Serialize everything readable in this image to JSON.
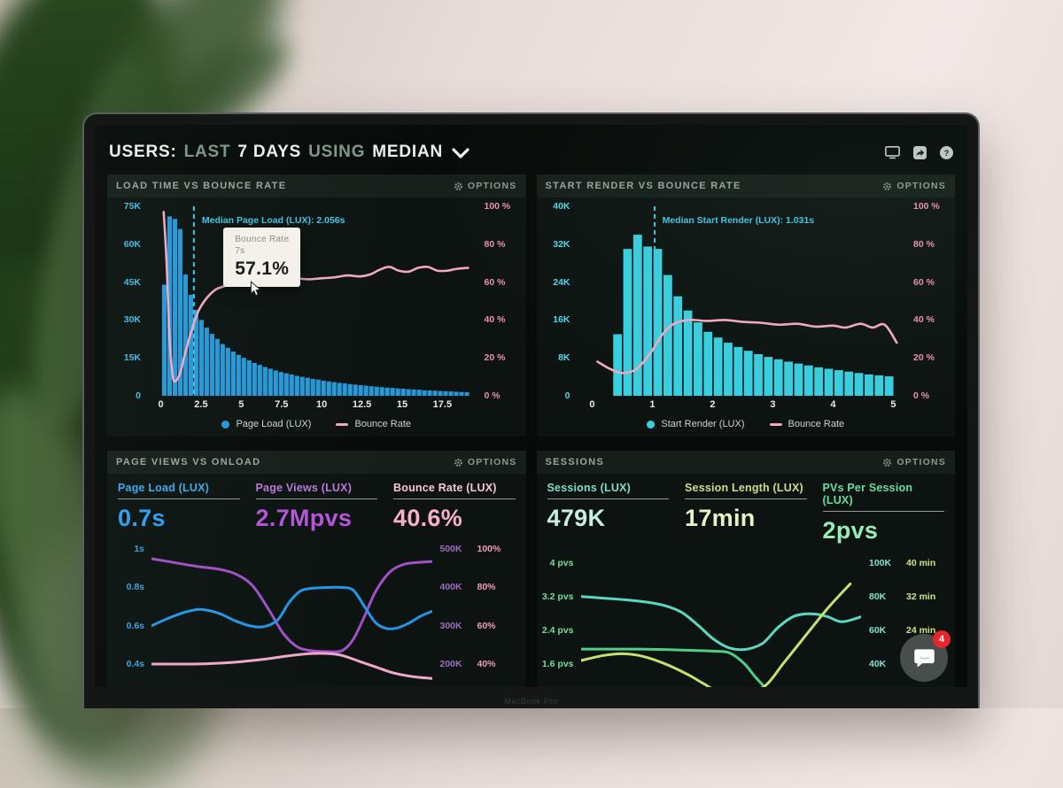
{
  "header": {
    "segments": [
      {
        "text": "USERS:",
        "style": "strong"
      },
      {
        "text": "LAST",
        "style": "muted"
      },
      {
        "text": "7 DAYS",
        "style": "strong"
      },
      {
        "text": "USING",
        "style": "muted"
      },
      {
        "text": "MEDIAN",
        "style": "strong"
      }
    ],
    "icons": [
      "display-icon",
      "share-icon",
      "help-icon"
    ]
  },
  "options_label": "OPTIONS",
  "bezel_label": "MacBook Pro",
  "chat": {
    "unread_count": "4",
    "badge_color": "#e8252d"
  },
  "chart_data": [
    {
      "id": "load-time-vs-bounce-rate",
      "title": "LOAD TIME VS BOUNCE RATE",
      "type": "bar",
      "xlim": [
        -0.8,
        19.6
      ],
      "xticks": [
        "0",
        "2.5",
        "5",
        "7.5",
        "10",
        "12.5",
        "15",
        "17.5"
      ],
      "xtick_values": [
        0,
        2.5,
        5,
        7.5,
        10,
        12.5,
        15,
        17.5
      ],
      "ylim_left": [
        0,
        75
      ],
      "yticks_left": [
        "75K",
        "60K",
        "45K",
        "30K",
        "15K",
        "0"
      ],
      "yticks_left_color": "#3fbce8",
      "ylim_right": [
        0,
        100
      ],
      "yticks_right": [
        "100 %",
        "80 %",
        "60 %",
        "40 %",
        "20 %",
        "0 %"
      ],
      "yticks_right_color": "#ef8fb2",
      "bars": {
        "name": "Page Load (LUX)",
        "color": "#2698d8",
        "bin_start": 0.05,
        "bin_width": 0.33,
        "values_k": [
          44,
          71,
          70,
          66,
          48,
          40,
          34,
          30,
          27,
          24.5,
          22.5,
          20.5,
          19,
          17.5,
          16.2,
          15,
          14,
          13,
          12.2,
          11.4,
          10.7,
          10,
          9.4,
          8.9,
          8.4,
          7.9,
          7.5,
          7.1,
          6.7,
          6.4,
          6,
          5.7,
          5.4,
          5.1,
          4.9,
          4.6,
          4.4,
          4.2,
          4,
          3.8,
          3.6,
          3.4,
          3.2,
          3.1,
          2.9,
          2.8,
          2.6,
          2.5,
          2.4,
          2.2,
          2.1,
          2,
          1.9,
          1.8,
          1.7,
          1.6,
          1.5,
          1.4
        ]
      },
      "line": {
        "name": "Bounce Rate",
        "color": "#f3a8c3",
        "points": [
          [
            0.18,
            97
          ],
          [
            0.35,
            72
          ],
          [
            0.55,
            30
          ],
          [
            0.75,
            10
          ],
          [
            0.95,
            8
          ],
          [
            1.2,
            12
          ],
          [
            1.5,
            22
          ],
          [
            1.9,
            34
          ],
          [
            2.3,
            44
          ],
          [
            2.8,
            51
          ],
          [
            3.4,
            56
          ],
          [
            4,
            58
          ],
          [
            4.6,
            60
          ],
          [
            5.2,
            61
          ],
          [
            6,
            62
          ],
          [
            6.8,
            61.5
          ],
          [
            7.6,
            62.5
          ],
          [
            8.4,
            62
          ],
          [
            9.2,
            61.5
          ],
          [
            10,
            62
          ],
          [
            10.8,
            62.5
          ],
          [
            11.6,
            63.5
          ],
          [
            12.4,
            63
          ],
          [
            13,
            64
          ],
          [
            13.6,
            66.5
          ],
          [
            14.2,
            68
          ],
          [
            14.8,
            66
          ],
          [
            15.4,
            65.5
          ],
          [
            16,
            67.5
          ],
          [
            16.6,
            68
          ],
          [
            17.2,
            66
          ],
          [
            17.8,
            66
          ],
          [
            18.4,
            67
          ],
          [
            19.1,
            67.5
          ]
        ]
      },
      "median_marker": {
        "x": 2.056,
        "label": "Median Page Load (LUX): 2.056s",
        "color": "#3ec6ea"
      },
      "tooltip": {
        "label": "Bounce Rate",
        "sublabel": "7s",
        "value": "57.1%"
      },
      "legend": [
        {
          "label": "Page Load (LUX)",
          "swatch": "dot",
          "color": "#2698d8"
        },
        {
          "label": "Bounce Rate",
          "swatch": "line",
          "color": "#f3a8c3"
        }
      ]
    },
    {
      "id": "start-render-vs-bounce-rate",
      "title": "START RENDER VS BOUNCE RATE",
      "type": "bar",
      "xlim": [
        -0.25,
        5.2
      ],
      "xticks": [
        "0",
        "1",
        "2",
        "3",
        "4",
        "5"
      ],
      "xtick_values": [
        0,
        1,
        2,
        3,
        4,
        5
      ],
      "ylim_left": [
        0,
        40
      ],
      "yticks_left": [
        "40K",
        "32K",
        "24K",
        "16K",
        "8K",
        "0"
      ],
      "yticks_left_color": "#4fd8e8",
      "ylim_right": [
        0,
        100
      ],
      "yticks_right": [
        "100 %",
        "80 %",
        "60 %",
        "40 %",
        "20 %",
        "0 %"
      ],
      "yticks_right_color": "#ef8fb2",
      "bars": {
        "name": "Start Render (LUX)",
        "color": "#38cfe0",
        "bin_start": 0.33,
        "bin_width": 0.167,
        "values_k": [
          13,
          31,
          34,
          31.5,
          31,
          25.5,
          21,
          18,
          15.5,
          13.5,
          12.3,
          11.2,
          10.3,
          9.5,
          8.8,
          8.2,
          7.7,
          7.2,
          6.8,
          6.4,
          6,
          5.7,
          5.4,
          5.1,
          4.8,
          4.5,
          4.3,
          4.1
        ]
      },
      "line": {
        "name": "Bounce Rate",
        "color": "#f3a8c3",
        "points": [
          [
            0.08,
            18
          ],
          [
            0.3,
            14
          ],
          [
            0.5,
            12
          ],
          [
            0.72,
            14
          ],
          [
            0.95,
            22
          ],
          [
            1.15,
            32
          ],
          [
            1.35,
            38
          ],
          [
            1.6,
            40
          ],
          [
            1.9,
            39.5
          ],
          [
            2.2,
            40
          ],
          [
            2.5,
            39
          ],
          [
            2.8,
            38.5
          ],
          [
            3.1,
            37.5
          ],
          [
            3.4,
            38
          ],
          [
            3.7,
            36.5
          ],
          [
            4,
            37
          ],
          [
            4.2,
            36
          ],
          [
            4.45,
            38
          ],
          [
            4.65,
            36
          ],
          [
            4.85,
            37.5
          ],
          [
            5.05,
            28
          ]
        ]
      },
      "median_marker": {
        "x": 1.031,
        "label": "Median Start Render (LUX): 1.031s",
        "color": "#3ec6ea"
      },
      "legend": [
        {
          "label": "Start Render (LUX)",
          "swatch": "dot",
          "color": "#38cfe0"
        },
        {
          "label": "Bounce Rate",
          "swatch": "line",
          "color": "#f3a8c3"
        }
      ]
    },
    {
      "id": "page-views-vs-onload",
      "title": "PAGE VIEWS VS ONLOAD",
      "type": "line",
      "stats": [
        {
          "label": "Page Load (LUX)",
          "value": "0.7s",
          "label_color": "#3ba7ea",
          "value_color": "#2f9ff0"
        },
        {
          "label": "Page Views (LUX)",
          "value": "2.7Mpvs",
          "label_color": "#bb77d6",
          "value_color": "#b455d6"
        },
        {
          "label": "Bounce Rate (LUX)",
          "value": "40.6%",
          "label_color": "#f8c6d8",
          "value_color": "#f8afcb"
        }
      ],
      "xlim": [
        0,
        1
      ],
      "ylim": [
        0.28,
        1.07
      ],
      "yticks_left": [
        "1s",
        "0.8s",
        "0.6s",
        "0.4s"
      ],
      "yticks_left_color": "#35a3e2",
      "yticks_right": [
        [
          "500K",
          "100%"
        ],
        [
          "400K",
          "80%"
        ],
        [
          "300K",
          "60%"
        ],
        [
          "200K",
          "40%"
        ]
      ],
      "yticks_right_colors": [
        "#a06cc0",
        "#f29bbc"
      ],
      "series": [
        {
          "name": "Page Views",
          "color": "#a050c8",
          "points": [
            [
              0,
              0.95
            ],
            [
              0.08,
              0.93
            ],
            [
              0.16,
              0.91
            ],
            [
              0.24,
              0.895
            ],
            [
              0.3,
              0.87
            ],
            [
              0.36,
              0.81
            ],
            [
              0.42,
              0.68
            ],
            [
              0.47,
              0.56
            ],
            [
              0.52,
              0.49
            ],
            [
              0.57,
              0.47
            ],
            [
              0.63,
              0.465
            ],
            [
              0.68,
              0.47
            ],
            [
              0.72,
              0.53
            ],
            [
              0.76,
              0.65
            ],
            [
              0.8,
              0.78
            ],
            [
              0.85,
              0.88
            ],
            [
              0.9,
              0.92
            ],
            [
              0.95,
              0.93
            ],
            [
              1,
              0.935
            ]
          ]
        },
        {
          "name": "Page Load",
          "color": "#2196e8",
          "points": [
            [
              0,
              0.6
            ],
            [
              0.07,
              0.645
            ],
            [
              0.13,
              0.675
            ],
            [
              0.18,
              0.685
            ],
            [
              0.24,
              0.665
            ],
            [
              0.3,
              0.625
            ],
            [
              0.35,
              0.6
            ],
            [
              0.4,
              0.595
            ],
            [
              0.45,
              0.63
            ],
            [
              0.49,
              0.72
            ],
            [
              0.53,
              0.78
            ],
            [
              0.57,
              0.795
            ],
            [
              0.63,
              0.8
            ],
            [
              0.68,
              0.8
            ],
            [
              0.72,
              0.785
            ],
            [
              0.76,
              0.7
            ],
            [
              0.8,
              0.615
            ],
            [
              0.84,
              0.585
            ],
            [
              0.88,
              0.59
            ],
            [
              0.92,
              0.615
            ],
            [
              0.96,
              0.65
            ],
            [
              1,
              0.675
            ]
          ]
        },
        {
          "name": "Bounce Rate",
          "color": "#f0a8c8",
          "points": [
            [
              0,
              0.4
            ],
            [
              0.1,
              0.4
            ],
            [
              0.2,
              0.402
            ],
            [
              0.3,
              0.41
            ],
            [
              0.4,
              0.425
            ],
            [
              0.5,
              0.445
            ],
            [
              0.57,
              0.455
            ],
            [
              0.63,
              0.455
            ],
            [
              0.68,
              0.445
            ],
            [
              0.74,
              0.415
            ],
            [
              0.8,
              0.385
            ],
            [
              0.86,
              0.355
            ],
            [
              0.93,
              0.335
            ],
            [
              1,
              0.325
            ]
          ]
        }
      ]
    },
    {
      "id": "sessions",
      "title": "SESSIONS",
      "type": "line",
      "stats": [
        {
          "label": "Sessions (LUX)",
          "value": "479K",
          "label_color": "#7ddcc9",
          "value_color": "#c6efe4"
        },
        {
          "label": "Session Length (LUX)",
          "value": "17min",
          "label_color": "#cede84",
          "value_color": "#eaf2c2"
        },
        {
          "label": "PVs Per Session (LUX)",
          "value": "2pvs",
          "label_color": "#63dfa0",
          "value_color": "#97ecb8"
        }
      ],
      "xlim": [
        0,
        1
      ],
      "ylim": [
        1.05,
        4.35
      ],
      "yticks_left": [
        "4 pvs",
        "3.2 pvs",
        "2.4 pvs",
        "1.6 pvs"
      ],
      "yticks_left_color": "#6fdf9a",
      "yticks_right": [
        [
          "100K",
          "40 min"
        ],
        [
          "80K",
          "32 min"
        ],
        [
          "60K",
          "24 min"
        ],
        [
          "40K",
          ""
        ]
      ],
      "yticks_right_colors": [
        "#7fe2cf",
        "#cfe48a"
      ],
      "series": [
        {
          "name": "Sessions",
          "color": "#5ad8c0",
          "points": [
            [
              0,
              3.2
            ],
            [
              0.08,
              3.16
            ],
            [
              0.16,
              3.12
            ],
            [
              0.24,
              3.06
            ],
            [
              0.3,
              2.98
            ],
            [
              0.36,
              2.82
            ],
            [
              0.42,
              2.5
            ],
            [
              0.47,
              2.2
            ],
            [
              0.52,
              2.0
            ],
            [
              0.56,
              1.94
            ],
            [
              0.6,
              1.96
            ],
            [
              0.65,
              2.1
            ],
            [
              0.7,
              2.45
            ],
            [
              0.75,
              2.7
            ],
            [
              0.79,
              2.78
            ],
            [
              0.84,
              2.78
            ],
            [
              0.88,
              2.72
            ],
            [
              0.93,
              2.6
            ],
            [
              1,
              2.72
            ]
          ]
        },
        {
          "name": "PVs Per Session",
          "color": "#4ecf86",
          "points": [
            [
              0,
              1.95
            ],
            [
              0.1,
              1.95
            ],
            [
              0.2,
              1.95
            ],
            [
              0.3,
              1.94
            ],
            [
              0.4,
              1.92
            ],
            [
              0.48,
              1.9
            ],
            [
              0.53,
              1.86
            ],
            [
              0.58,
              1.62
            ],
            [
              0.62,
              1.3
            ],
            [
              0.655,
              1.05
            ]
          ]
        },
        {
          "name": "Session Length",
          "color": "#c8e070",
          "points": [
            [
              0,
              1.68
            ],
            [
              0.08,
              1.8
            ],
            [
              0.15,
              1.84
            ],
            [
              0.22,
              1.78
            ],
            [
              0.3,
              1.6
            ],
            [
              0.38,
              1.35
            ],
            [
              0.44,
              1.12
            ],
            [
              0.48,
              1.0
            ],
            [
              0.6,
              0.95
            ],
            [
              0.66,
              1.1
            ],
            [
              0.72,
              1.6
            ],
            [
              0.78,
              2.1
            ],
            [
              0.84,
              2.6
            ],
            [
              0.89,
              3.0
            ],
            [
              0.96,
              3.5
            ]
          ]
        }
      ]
    }
  ]
}
